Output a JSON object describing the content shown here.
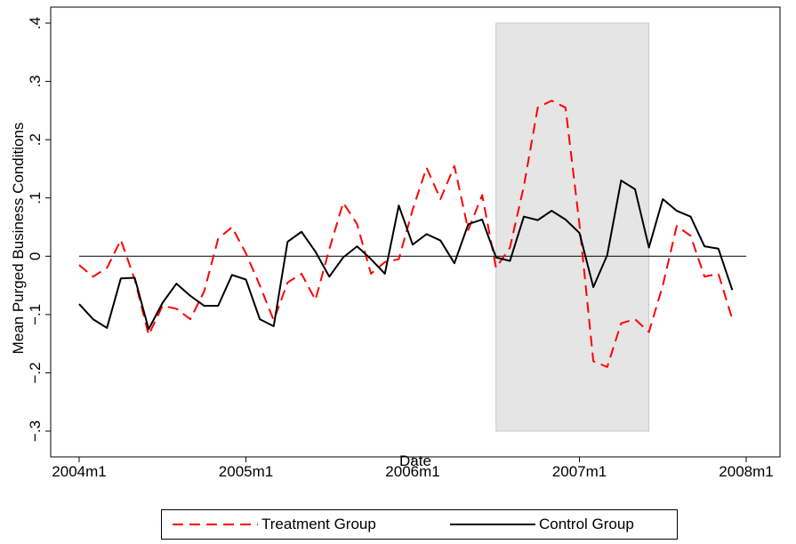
{
  "chart_data": {
    "type": "line",
    "xlabel": "Date",
    "ylabel": "Mean Purged Business Conditions",
    "x_ticks": [
      "2004m1",
      "2005m1",
      "2006m1",
      "2007m1",
      "2008m1"
    ],
    "x_range": [
      "2004m1",
      "2008m1"
    ],
    "y_ticks": [
      "-.3",
      "-.2",
      "-.1",
      "0",
      ".1",
      ".2",
      ".3",
      ".4"
    ],
    "ylim": [
      -0.3,
      0.4
    ],
    "reference_line_y": 0,
    "shaded_region": {
      "start": "2006m7",
      "end": "2007m6",
      "color": "#e5e5e5"
    },
    "legend_position": "bottom",
    "series": [
      {
        "name": "Treatment Group",
        "color": "#ff0000",
        "style": "dashed",
        "x": [
          "2004m1",
          "2004m2",
          "2004m3",
          "2004m4",
          "2004m5",
          "2004m6",
          "2004m7",
          "2004m8",
          "2004m9",
          "2004m10",
          "2004m11",
          "2004m12",
          "2005m1",
          "2005m2",
          "2005m3",
          "2005m4",
          "2005m5",
          "2005m6",
          "2005m7",
          "2005m8",
          "2005m9",
          "2005m10",
          "2005m11",
          "2005m12",
          "2006m1",
          "2006m2",
          "2006m3",
          "2006m4",
          "2006m5",
          "2006m6",
          "2006m7",
          "2006m8",
          "2006m9",
          "2006m10",
          "2006m11",
          "2006m12",
          "2007m1",
          "2007m2",
          "2007m3",
          "2007m4",
          "2007m5",
          "2007m6",
          "2007m7",
          "2007m8",
          "2007m9",
          "2007m10",
          "2007m11",
          "2007m12"
        ],
        "values": [
          -0.015,
          -0.035,
          -0.02,
          0.028,
          -0.04,
          -0.135,
          -0.085,
          -0.09,
          -0.108,
          -0.06,
          0.03,
          0.05,
          0.005,
          -0.05,
          -0.11,
          -0.045,
          -0.03,
          -0.075,
          0.012,
          0.092,
          0.055,
          -0.03,
          -0.01,
          -0.005,
          0.08,
          0.152,
          0.098,
          0.155,
          0.045,
          0.105,
          -0.02,
          0.015,
          0.12,
          0.255,
          0.267,
          0.255,
          0.055,
          -0.18,
          -0.19,
          -0.115,
          -0.108,
          -0.13,
          -0.05,
          0.052,
          0.035,
          -0.035,
          -0.03,
          -0.108
        ]
      },
      {
        "name": "Control Group",
        "color": "#000000",
        "style": "solid",
        "x": [
          "2004m1",
          "2004m2",
          "2004m3",
          "2004m4",
          "2004m5",
          "2004m6",
          "2004m7",
          "2004m8",
          "2004m9",
          "2004m10",
          "2004m11",
          "2004m12",
          "2005m1",
          "2005m2",
          "2005m3",
          "2005m4",
          "2005m5",
          "2005m6",
          "2005m7",
          "2005m8",
          "2005m9",
          "2005m10",
          "2005m11",
          "2005m12",
          "2006m1",
          "2006m2",
          "2006m3",
          "2006m4",
          "2006m5",
          "2006m6",
          "2006m7",
          "2006m8",
          "2006m9",
          "2006m10",
          "2006m11",
          "2006m12",
          "2007m1",
          "2007m2",
          "2007m3",
          "2007m4",
          "2007m5",
          "2007m6",
          "2007m7",
          "2007m8",
          "2007m9",
          "2007m10",
          "2007m11",
          "2007m12"
        ],
        "values": [
          -0.082,
          -0.108,
          -0.123,
          -0.038,
          -0.037,
          -0.125,
          -0.08,
          -0.047,
          -0.068,
          -0.085,
          -0.085,
          -0.032,
          -0.04,
          -0.108,
          -0.12,
          0.025,
          0.042,
          0.008,
          -0.035,
          -0.002,
          0.017,
          -0.005,
          -0.03,
          0.087,
          0.02,
          0.038,
          0.027,
          -0.012,
          0.055,
          0.063,
          -0.002,
          -0.008,
          0.068,
          0.062,
          0.078,
          0.063,
          0.04,
          -0.053,
          0.002,
          0.13,
          0.115,
          0.015,
          0.098,
          0.078,
          0.068,
          0.017,
          0.013,
          -0.058
        ]
      }
    ]
  }
}
